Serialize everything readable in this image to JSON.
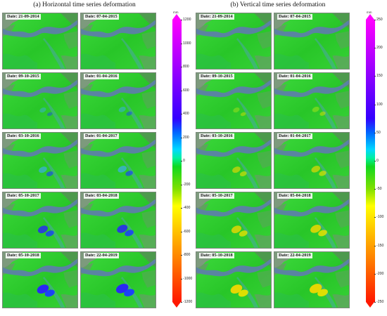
{
  "panels": [
    {
      "title": "(a)   Horizontal time series deformation",
      "unit": "mm",
      "colorbar_ticks": [
        "1200",
        "1000",
        "800",
        "600",
        "400",
        "200",
        "0",
        "-200",
        "-400",
        "-600",
        "-800",
        "-1000",
        "-1200"
      ],
      "dates": [
        [
          "Date: 21-09-2014",
          "Date: 07-04-2015"
        ],
        [
          "Date: 09-10-2015",
          "Date: 01-04-2016"
        ],
        [
          "Date: 03-10-2016",
          "Date: 01-04-2017"
        ],
        [
          "Date: 05-10-2017",
          "Date: 03-04-2018"
        ],
        [
          "Date: 05-10-2018",
          "Date: 22-04-2019"
        ]
      ]
    },
    {
      "title": "(b)   Vertical time series deformation",
      "unit": "mm",
      "colorbar_ticks": [
        "250",
        "200",
        "150",
        "100",
        "50",
        "0",
        "-50",
        "-100",
        "-150",
        "-200",
        "-250"
      ],
      "dates": [
        [
          "Date: 21-09-2014",
          "Date: 07-04-2015"
        ],
        [
          "Date: 09-10-2015",
          "Date: 01-04-2016"
        ],
        [
          "Date: 03-10-2016",
          "Date: 01-04-2017"
        ],
        [
          "Date: 05-10-2017",
          "Date: 05-04-2018"
        ],
        [
          "Date: 05-10-2018",
          "Date: 22-04-2019"
        ]
      ]
    }
  ],
  "colors": {
    "deformation_horizontal": "#1a3cff",
    "deformation_vertical": "#e8e000",
    "terrain_base": "#2fd22f",
    "river": "#5d7fa8"
  }
}
